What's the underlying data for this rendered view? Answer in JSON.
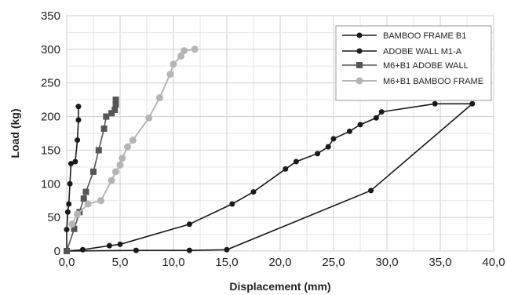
{
  "chart_data": {
    "type": "scatter",
    "title": "",
    "xlabel": "Displacement (mm)",
    "ylabel": "Load (kg)",
    "xlim": [
      0,
      40
    ],
    "ylim": [
      0,
      350
    ],
    "x_ticks": [
      0,
      5,
      10,
      15,
      20,
      25,
      30,
      35,
      40
    ],
    "x_tick_labels": [
      "0,0",
      "5,0",
      "10,0",
      "15,0",
      "20,0",
      "25,0",
      "30,0",
      "35,0",
      "40,0"
    ],
    "y_ticks": [
      0,
      50,
      100,
      150,
      200,
      250,
      300,
      350
    ],
    "y_tick_labels": [
      "0",
      "50",
      "100",
      "150",
      "200",
      "250",
      "300",
      "350"
    ],
    "grid": true,
    "legend_position": "top-right",
    "series": [
      {
        "name": "BAMBOO FRAME B1",
        "color": "#1a1a1a",
        "marker": "circle",
        "points": [
          [
            0,
            0
          ],
          [
            1.5,
            2
          ],
          [
            4,
            8
          ],
          [
            5,
            10
          ],
          [
            11.5,
            40
          ],
          [
            15.5,
            70
          ],
          [
            17.5,
            88
          ],
          [
            20.5,
            122
          ],
          [
            21.5,
            133
          ],
          [
            23.5,
            145
          ],
          [
            24.5,
            155
          ],
          [
            25,
            167
          ],
          [
            26.5,
            178
          ],
          [
            27.5,
            188
          ],
          [
            29,
            198
          ],
          [
            29.5,
            207
          ],
          [
            34.5,
            219
          ],
          [
            38,
            219
          ],
          [
            28.5,
            90
          ],
          [
            15,
            2
          ],
          [
            11.5,
            1
          ],
          [
            6.5,
            1
          ],
          [
            0,
            0
          ]
        ]
      },
      {
        "name": "ADOBE WALL M1-A",
        "color": "#1a1a1a",
        "marker": "circle",
        "points": [
          [
            0,
            0
          ],
          [
            0,
            32
          ],
          [
            0.1,
            58
          ],
          [
            0.2,
            70
          ],
          [
            0.3,
            100
          ],
          [
            0.4,
            130
          ],
          [
            0.8,
            133
          ],
          [
            1,
            165
          ],
          [
            1.1,
            195
          ],
          [
            1.1,
            215
          ]
        ]
      },
      {
        "name": "M6+B1 ADOBE WALL",
        "color": "#555555",
        "marker": "square",
        "points": [
          [
            0,
            0
          ],
          [
            0.7,
            33
          ],
          [
            1.2,
            58
          ],
          [
            1.6,
            78
          ],
          [
            1.8,
            88
          ],
          [
            2.5,
            118
          ],
          [
            3,
            150
          ],
          [
            3.5,
            182
          ],
          [
            3.7,
            200
          ],
          [
            4.2,
            205
          ],
          [
            4.5,
            210
          ],
          [
            4.6,
            218
          ],
          [
            4.6,
            225
          ]
        ]
      },
      {
        "name": "M6+B1 BAMBOO FRAME",
        "color": "#b5b5b5",
        "marker": "circle",
        "points": [
          [
            0.5,
            40
          ],
          [
            1,
            55
          ],
          [
            2,
            70
          ],
          [
            3.2,
            75
          ],
          [
            4.2,
            105
          ],
          [
            4.6,
            118
          ],
          [
            5,
            128
          ],
          [
            5.2,
            138
          ],
          [
            5.7,
            155
          ],
          [
            6.2,
            165
          ],
          [
            7.7,
            198
          ],
          [
            8.7,
            228
          ],
          [
            9.7,
            263
          ],
          [
            10,
            278
          ],
          [
            10.7,
            290
          ],
          [
            11,
            298
          ],
          [
            12,
            300
          ]
        ]
      }
    ]
  }
}
